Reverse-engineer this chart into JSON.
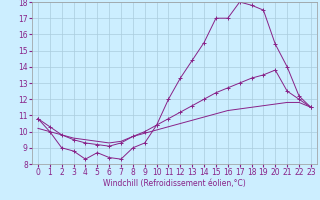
{
  "title": "",
  "xlabel": "Windchill (Refroidissement éolien,°C)",
  "background_color": "#cceeff",
  "grid_color": "#aaccdd",
  "line_color": "#882288",
  "x": [
    0,
    1,
    2,
    3,
    4,
    5,
    6,
    7,
    8,
    9,
    10,
    11,
    12,
    13,
    14,
    15,
    16,
    17,
    18,
    19,
    20,
    21,
    22,
    23
  ],
  "line1": [
    10.8,
    10.0,
    9.0,
    8.8,
    8.3,
    8.7,
    8.4,
    8.3,
    9.0,
    9.3,
    10.4,
    12.0,
    13.3,
    14.4,
    15.5,
    17.0,
    17.0,
    18.0,
    17.8,
    17.5,
    15.4,
    14.0,
    12.2,
    11.5
  ],
  "line2": [
    10.8,
    10.3,
    9.8,
    9.5,
    9.3,
    9.2,
    9.1,
    9.3,
    9.7,
    10.0,
    10.4,
    10.8,
    11.2,
    11.6,
    12.0,
    12.4,
    12.7,
    13.0,
    13.3,
    13.5,
    13.8,
    12.5,
    12.0,
    11.5
  ],
  "line3": [
    10.2,
    10.0,
    9.8,
    9.6,
    9.5,
    9.4,
    9.3,
    9.4,
    9.7,
    9.9,
    10.1,
    10.3,
    10.5,
    10.7,
    10.9,
    11.1,
    11.3,
    11.4,
    11.5,
    11.6,
    11.7,
    11.8,
    11.8,
    11.5
  ],
  "ylim": [
    8,
    18
  ],
  "xlim_min": -0.5,
  "xlim_max": 23.5,
  "yticks": [
    8,
    9,
    10,
    11,
    12,
    13,
    14,
    15,
    16,
    17,
    18
  ],
  "xticks": [
    0,
    1,
    2,
    3,
    4,
    5,
    6,
    7,
    8,
    9,
    10,
    11,
    12,
    13,
    14,
    15,
    16,
    17,
    18,
    19,
    20,
    21,
    22,
    23
  ],
  "tick_fontsize": 5.5,
  "xlabel_fontsize": 5.5
}
